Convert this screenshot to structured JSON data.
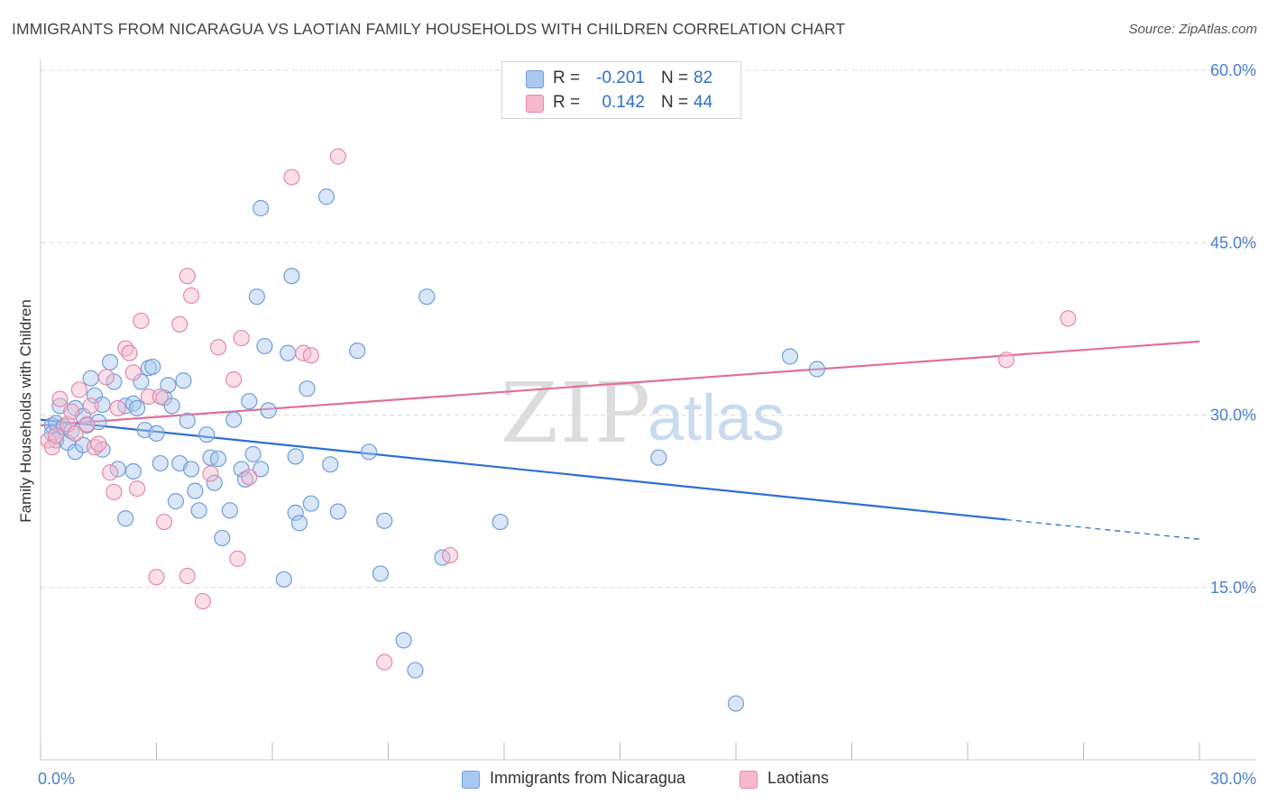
{
  "title": "IMMIGRANTS FROM NICARAGUA VS LAOTIAN FAMILY HOUSEHOLDS WITH CHILDREN CORRELATION CHART",
  "source": "Source: ZipAtlas.com",
  "watermark": {
    "zip": "ZIP",
    "atlas": "atlas"
  },
  "legend": {
    "r_label": "R =",
    "n_label": "N =",
    "rows": [
      {
        "r": "-0.201",
        "n": "82",
        "color": "#a9c8f0"
      },
      {
        "r": "0.142",
        "n": "44",
        "color": "#f6b8cc"
      }
    ]
  },
  "colors": {
    "blue_fill": "#a9c8f0",
    "blue_stroke": "#6f9fd8",
    "blue_line": "#2e6fcf",
    "pink_fill": "#f6b8cc",
    "pink_stroke": "#e48aa8",
    "pink_line": "#e07097",
    "tick_label": "#4a7fcf",
    "grid": "#dddddd"
  },
  "chart_data": {
    "type": "scatter",
    "title": "IMMIGRANTS FROM NICARAGUA VS LAOTIAN FAMILY HOUSEHOLDS WITH CHILDREN CORRELATION CHART",
    "xlabel": "",
    "ylabel": "Family Households with Children",
    "xlim": [
      0,
      30
    ],
    "ylim": [
      0,
      60
    ],
    "x_tick_labels": [
      "0.0%",
      "30.0%"
    ],
    "y_ticks": [
      15,
      30,
      45,
      60
    ],
    "y_tick_labels": [
      "15.0%",
      "30.0%",
      "45.0%",
      "60.0%"
    ],
    "grid": true,
    "legend_position": "top-center",
    "series": [
      {
        "name": "Immigrants from Nicaragua",
        "r": -0.201,
        "n": 82,
        "trend": {
          "x": [
            0,
            25
          ],
          "y": [
            29.6,
            20.9
          ],
          "dashed_to": [
            30,
            19.2
          ]
        },
        "points": [
          [
            0.3,
            29.1
          ],
          [
            0.3,
            28.4
          ],
          [
            0.4,
            27.8
          ],
          [
            0.4,
            29.3
          ],
          [
            0.5,
            30.8
          ],
          [
            0.6,
            29.0
          ],
          [
            0.7,
            27.6
          ],
          [
            0.8,
            28.6
          ],
          [
            0.9,
            30.6
          ],
          [
            0.9,
            26.8
          ],
          [
            1.1,
            29.9
          ],
          [
            1.1,
            27.4
          ],
          [
            1.2,
            29.1
          ],
          [
            1.3,
            33.2
          ],
          [
            1.4,
            31.7
          ],
          [
            1.5,
            29.4
          ],
          [
            1.6,
            30.9
          ],
          [
            1.6,
            27.0
          ],
          [
            1.8,
            34.6
          ],
          [
            1.9,
            32.9
          ],
          [
            2.0,
            25.3
          ],
          [
            2.2,
            30.8
          ],
          [
            2.2,
            21.0
          ],
          [
            2.4,
            31.0
          ],
          [
            2.4,
            25.1
          ],
          [
            2.5,
            30.6
          ],
          [
            2.6,
            32.9
          ],
          [
            2.7,
            28.7
          ],
          [
            2.8,
            34.1
          ],
          [
            2.9,
            34.2
          ],
          [
            3.0,
            28.4
          ],
          [
            3.1,
            25.8
          ],
          [
            3.2,
            31.5
          ],
          [
            3.3,
            32.6
          ],
          [
            3.4,
            30.8
          ],
          [
            3.5,
            22.5
          ],
          [
            3.6,
            25.8
          ],
          [
            3.7,
            33.0
          ],
          [
            3.8,
            29.5
          ],
          [
            3.9,
            25.3
          ],
          [
            4.0,
            23.4
          ],
          [
            4.1,
            21.7
          ],
          [
            4.3,
            28.3
          ],
          [
            4.4,
            26.3
          ],
          [
            4.5,
            24.1
          ],
          [
            4.6,
            26.2
          ],
          [
            4.7,
            19.3
          ],
          [
            4.9,
            21.7
          ],
          [
            5.0,
            29.6
          ],
          [
            5.2,
            25.3
          ],
          [
            5.3,
            24.4
          ],
          [
            5.4,
            31.2
          ],
          [
            5.5,
            26.6
          ],
          [
            5.6,
            40.3
          ],
          [
            5.7,
            25.3
          ],
          [
            5.7,
            48.0
          ],
          [
            5.8,
            36.0
          ],
          [
            5.9,
            30.4
          ],
          [
            6.3,
            15.7
          ],
          [
            6.4,
            35.4
          ],
          [
            6.5,
            42.1
          ],
          [
            6.6,
            21.5
          ],
          [
            6.6,
            26.4
          ],
          [
            6.7,
            20.6
          ],
          [
            6.9,
            32.3
          ],
          [
            7.0,
            22.3
          ],
          [
            7.4,
            49.0
          ],
          [
            7.5,
            25.7
          ],
          [
            7.7,
            21.6
          ],
          [
            8.2,
            35.6
          ],
          [
            8.5,
            26.8
          ],
          [
            8.8,
            16.2
          ],
          [
            8.9,
            20.8
          ],
          [
            9.4,
            10.4
          ],
          [
            9.7,
            7.8
          ],
          [
            10.0,
            40.3
          ],
          [
            10.4,
            17.6
          ],
          [
            11.9,
            20.7
          ],
          [
            16.0,
            26.3
          ],
          [
            18.0,
            4.9
          ],
          [
            19.4,
            35.1
          ],
          [
            20.1,
            34.0
          ]
        ]
      },
      {
        "name": "Laotians",
        "r": 0.142,
        "n": 44,
        "trend": {
          "x": [
            0,
            30
          ],
          "y": [
            29.1,
            36.4
          ]
        },
        "points": [
          [
            0.2,
            27.8
          ],
          [
            0.3,
            27.2
          ],
          [
            0.4,
            28.2
          ],
          [
            0.5,
            31.4
          ],
          [
            0.7,
            29.2
          ],
          [
            0.8,
            30.3
          ],
          [
            0.9,
            28.4
          ],
          [
            1.0,
            32.2
          ],
          [
            1.2,
            29.2
          ],
          [
            1.3,
            30.8
          ],
          [
            1.4,
            27.2
          ],
          [
            1.5,
            27.5
          ],
          [
            1.7,
            33.3
          ],
          [
            1.8,
            25.0
          ],
          [
            1.9,
            23.3
          ],
          [
            2.0,
            30.6
          ],
          [
            2.2,
            35.8
          ],
          [
            2.3,
            35.4
          ],
          [
            2.4,
            33.7
          ],
          [
            2.5,
            23.6
          ],
          [
            2.6,
            38.2
          ],
          [
            2.8,
            31.6
          ],
          [
            3.0,
            15.9
          ],
          [
            3.1,
            31.6
          ],
          [
            3.2,
            20.7
          ],
          [
            3.6,
            37.9
          ],
          [
            3.8,
            42.1
          ],
          [
            3.8,
            16.0
          ],
          [
            3.9,
            40.4
          ],
          [
            4.2,
            13.8
          ],
          [
            4.4,
            24.9
          ],
          [
            4.6,
            35.9
          ],
          [
            5.0,
            33.1
          ],
          [
            5.1,
            17.5
          ],
          [
            5.2,
            36.7
          ],
          [
            5.4,
            24.6
          ],
          [
            6.5,
            50.7
          ],
          [
            6.8,
            35.4
          ],
          [
            7.0,
            35.2
          ],
          [
            7.7,
            52.5
          ],
          [
            8.9,
            8.5
          ],
          [
            10.6,
            17.8
          ],
          [
            25.0,
            34.8
          ],
          [
            26.6,
            38.4
          ]
        ]
      }
    ]
  }
}
